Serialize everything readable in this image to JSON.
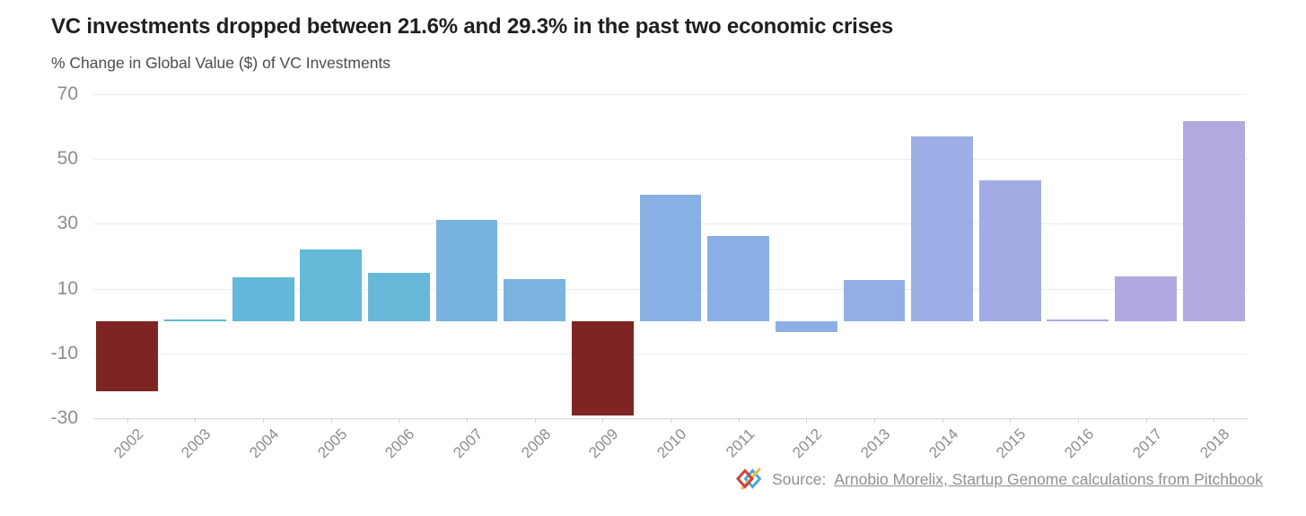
{
  "header": {
    "title": "VC investments dropped between 21.6% and 29.3% in the past two economic crises",
    "subtitle": "% Change in Global Value ($) of VC Investments"
  },
  "footer": {
    "source_prefix": "Source:",
    "source_link": "Arnobio Morelix, Startup Genome calculations from Pitchbook",
    "logo_colors": {
      "red": "#c8463e",
      "blue": "#4aa8d8",
      "yellow": "#ecbd57"
    }
  },
  "chart_data": {
    "type": "bar",
    "title": "VC investments dropped between 21.6% and 29.3% in the past two economic crises",
    "subtitle": "% Change in Global Value ($) of VC Investments",
    "categories": [
      "2002",
      "2003",
      "2004",
      "2005",
      "2006",
      "2007",
      "2008",
      "2009",
      "2010",
      "2011",
      "2012",
      "2013",
      "2014",
      "2015",
      "2016",
      "2017",
      "2018"
    ],
    "values": [
      -21.6,
      0.4,
      13.5,
      22.1,
      14.8,
      31.2,
      13.0,
      -29.3,
      39.1,
      26.3,
      -3.3,
      12.7,
      56.9,
      43.5,
      0.4,
      13.9,
      61.6
    ],
    "colors": [
      "#7e2524",
      "#5bbcd8",
      "#62b9d9",
      "#64bad8",
      "#68b8da",
      "#79b4df",
      "#7bb4de",
      "#7e2524",
      "#88b0e4",
      "#8bafe4",
      "#90aee6",
      "#95ade5",
      "#9dade5",
      "#a1abe4",
      "#a9aae2",
      "#afa9e0",
      "#b3a9df"
    ],
    "crisis_color": "#7e2524",
    "ylim": [
      -30,
      70
    ],
    "y_ticks": [
      70,
      50,
      30,
      10,
      -10,
      -30
    ],
    "grid": true,
    "legend": "none",
    "xlabel": "",
    "ylabel": "% Change in Global Value ($) of VC Investments",
    "xlabel_rotation_deg": -45
  }
}
